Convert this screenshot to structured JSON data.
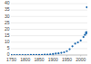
{
  "chart_data": {
    "type": "scatter",
    "x": [
      1750,
      1760,
      1770,
      1780,
      1790,
      1800,
      1810,
      1820,
      1830,
      1840,
      1850,
      1860,
      1870,
      1880,
      1890,
      1900,
      1910,
      1920,
      1930,
      1940,
      1950,
      1960,
      1970,
      1980,
      1990,
      2000,
      2010,
      2015,
      2019,
      2020,
      2021,
      2022
    ],
    "values": [
      0.003,
      0.004,
      0.005,
      0.006,
      0.008,
      0.01,
      0.015,
      0.02,
      0.03,
      0.05,
      0.08,
      0.13,
      0.2,
      0.35,
      0.53,
      0.78,
      1.1,
      1.3,
      1.7,
      2.1,
      3.0,
      4.5,
      6.8,
      8.8,
      9.8,
      11.3,
      14.0,
      15.7,
      17.5,
      16.6,
      17.8,
      37.15
    ],
    "color": "#1f6bb0",
    "marker": "circle",
    "xlim": [
      1748,
      2024
    ],
    "xticks": [
      1750,
      1800,
      1850,
      1900,
      1950,
      2000
    ],
    "ylim": [
      0,
      40
    ],
    "yticks": [
      0,
      5,
      10,
      15,
      20,
      25,
      30,
      35,
      40
    ],
    "grid": true
  }
}
